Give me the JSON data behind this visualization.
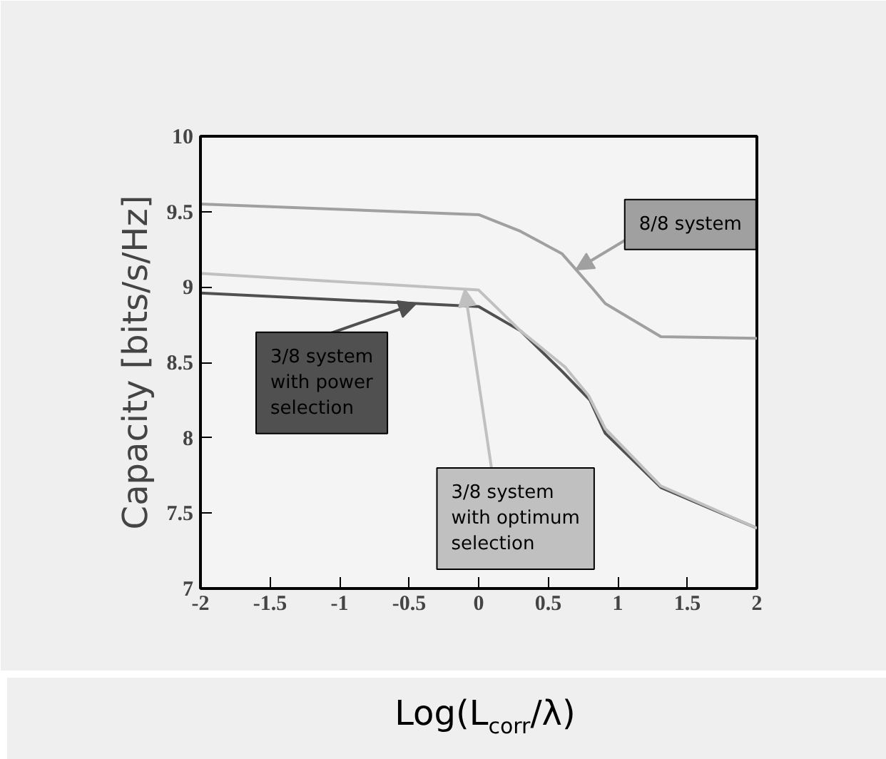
{
  "chart_data": {
    "type": "line",
    "xlabel": "Log(L$_{corr}$/λ)",
    "ylabel": "Capacity [bits/s/Hz]",
    "xlim": [
      -2,
      2
    ],
    "xticks": [
      -2,
      -1.5,
      -1,
      -0.5,
      0,
      0.5,
      1,
      1.5,
      2
    ],
    "ylim": [
      7,
      10
    ],
    "yticks": [
      7,
      7.5,
      8,
      8.5,
      9,
      9.5,
      10
    ],
    "grid": false,
    "legend": false,
    "series": [
      {
        "name": "8/8 system",
        "color": "#a0a0a0",
        "x": [
          -2,
          0,
          0.3,
          0.6,
          0.81,
          0.91,
          1.31,
          2
        ],
        "values": [
          9.55,
          9.48,
          9.37,
          9.22,
          9.0,
          8.89,
          8.67,
          8.66
        ]
      },
      {
        "name": "3/8 system with power selection",
        "color": "#505050",
        "x": [
          -2,
          0,
          0.3,
          0.6,
          0.8,
          0.91,
          1.31,
          2
        ],
        "values": [
          8.96,
          8.87,
          8.71,
          8.44,
          8.25,
          8.03,
          7.67,
          7.4
        ]
      },
      {
        "name": "3/8 system with optimum selection",
        "color": "#c0c0c0",
        "x": [
          -2,
          0,
          0.3,
          0.62,
          0.79,
          0.91,
          1.31,
          2
        ],
        "values": [
          9.09,
          8.98,
          8.71,
          8.47,
          8.28,
          8.06,
          7.68,
          7.4
        ]
      }
    ]
  }
}
